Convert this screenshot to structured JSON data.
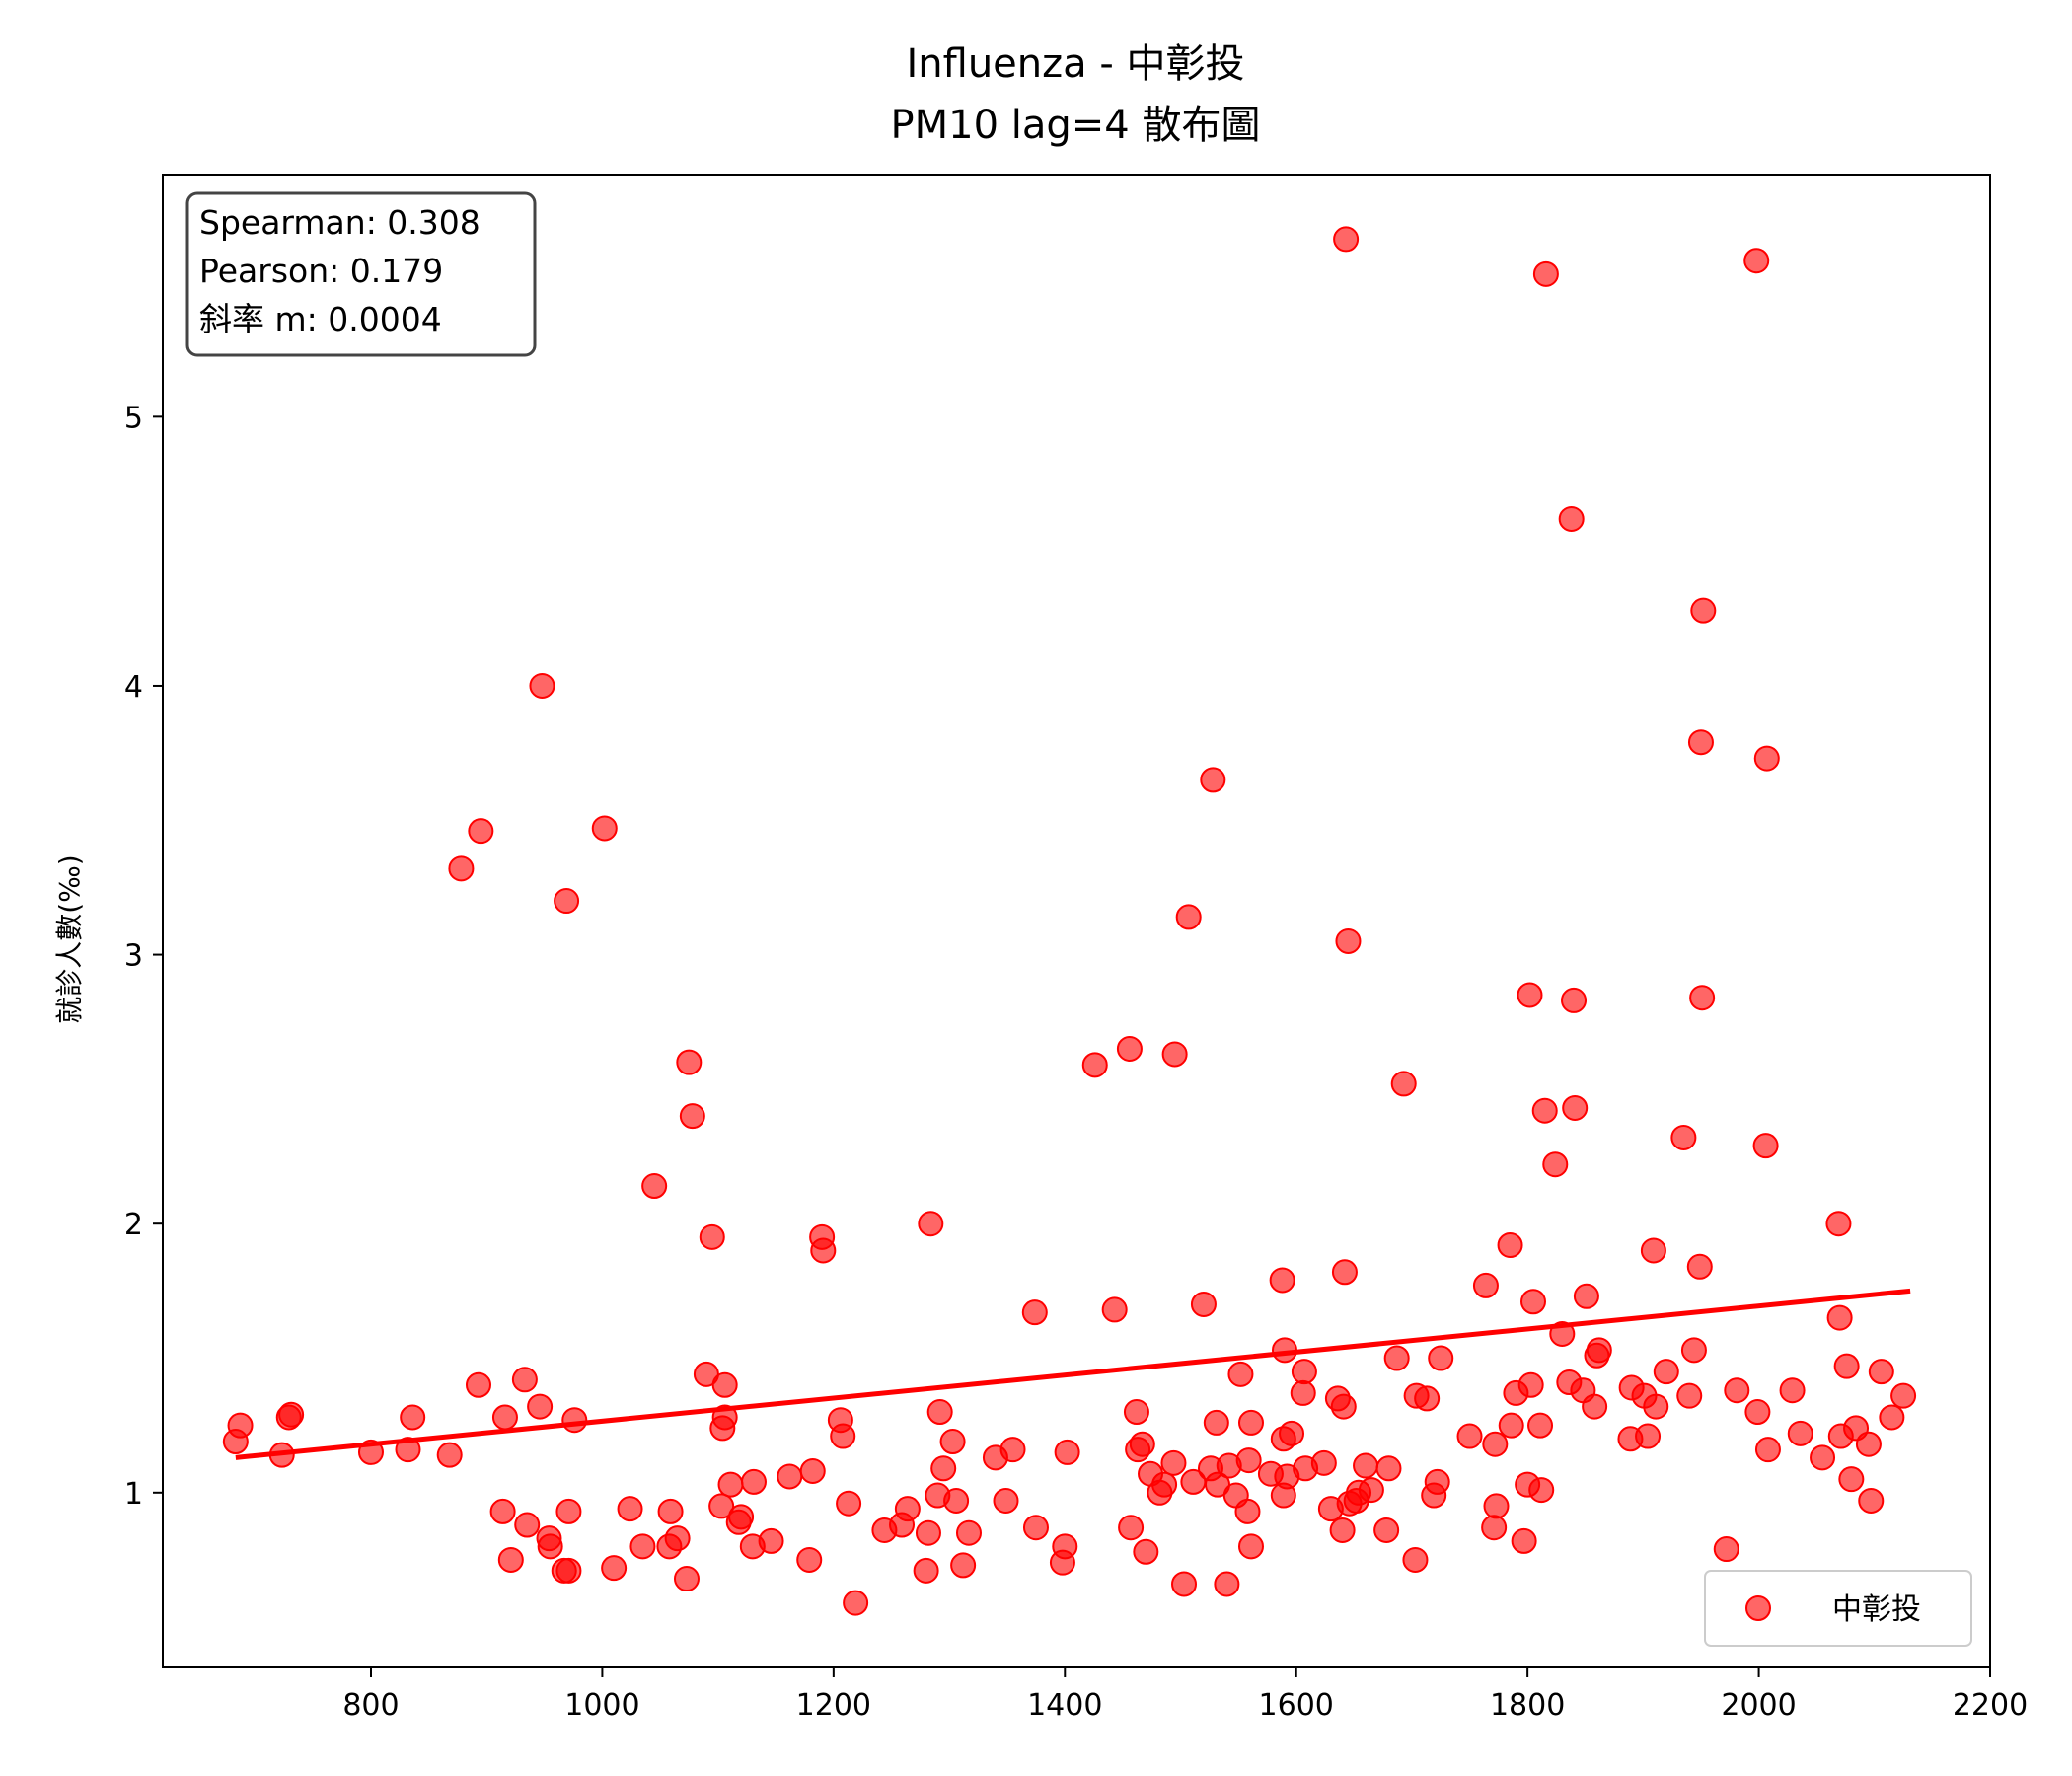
{
  "chart_data": {
    "type": "scatter",
    "title_line1": "Influenza - 中彰投",
    "title_line2": "PM10 lag=4 散布圖",
    "xlabel": "",
    "ylabel": "就診人數(‰)",
    "xlim": [
      620,
      2200
    ],
    "ylim": [
      0.35,
      5.9
    ],
    "xticks": [
      800,
      1000,
      1200,
      1400,
      1600,
      1800,
      2000,
      2200
    ],
    "yticks": [
      1,
      2,
      3,
      4,
      5
    ],
    "stats": {
      "spearman": "Spearman: 0.308",
      "pearson": "Pearson: 0.179",
      "slope": "斜率 m: 0.0004"
    },
    "legend": {
      "label": "中彰投",
      "placement": "lower-right"
    },
    "colors": {
      "point": "#ff0000",
      "line": "#ff0000"
    },
    "trendline": {
      "x": [
        683,
        2131
      ],
      "y": [
        1.13,
        1.75
      ]
    },
    "series": [
      {
        "name": "中彰投",
        "points": [
          [
            683,
            1.19
          ],
          [
            687,
            1.25
          ],
          [
            723,
            1.14
          ],
          [
            729,
            1.28
          ],
          [
            731,
            1.29
          ],
          [
            800,
            1.15
          ],
          [
            832,
            1.16
          ],
          [
            836,
            1.28
          ],
          [
            868,
            1.14
          ],
          [
            878,
            3.32
          ],
          [
            893,
            1.4
          ],
          [
            895,
            3.46
          ],
          [
            914,
            0.93
          ],
          [
            916,
            1.28
          ],
          [
            921,
            0.75
          ],
          [
            933,
            1.42
          ],
          [
            935,
            0.88
          ],
          [
            946,
            1.32
          ],
          [
            948,
            4.0
          ],
          [
            954,
            0.83
          ],
          [
            955,
            0.8
          ],
          [
            967,
            0.71
          ],
          [
            969,
            3.2
          ],
          [
            971,
            0.71
          ],
          [
            971,
            0.93
          ],
          [
            976,
            1.27
          ],
          [
            1002,
            3.47
          ],
          [
            1010,
            0.72
          ],
          [
            1024,
            0.94
          ],
          [
            1035,
            0.8
          ],
          [
            1045,
            2.14
          ],
          [
            1058,
            0.8
          ],
          [
            1059,
            0.93
          ],
          [
            1065,
            0.83
          ],
          [
            1073,
            0.68
          ],
          [
            1075,
            2.6
          ],
          [
            1078,
            2.4
          ],
          [
            1090,
            1.44
          ],
          [
            1095,
            1.95
          ],
          [
            1103,
            0.95
          ],
          [
            1104,
            1.24
          ],
          [
            1106,
            1.28
          ],
          [
            1106,
            1.4
          ],
          [
            1111,
            1.03
          ],
          [
            1118,
            0.89
          ],
          [
            1120,
            0.91
          ],
          [
            1130,
            0.8
          ],
          [
            1131,
            1.04
          ],
          [
            1146,
            0.82
          ],
          [
            1162,
            1.06
          ],
          [
            1179,
            0.75
          ],
          [
            1182,
            1.08
          ],
          [
            1190,
            1.95
          ],
          [
            1191,
            1.9
          ],
          [
            1206,
            1.27
          ],
          [
            1208,
            1.21
          ],
          [
            1213,
            0.96
          ],
          [
            1219,
            0.59
          ],
          [
            1244,
            0.86
          ],
          [
            1259,
            0.88
          ],
          [
            1264,
            0.94
          ],
          [
            1280,
            0.71
          ],
          [
            1282,
            0.85
          ],
          [
            1284,
            2.0
          ],
          [
            1290,
            0.99
          ],
          [
            1292,
            1.3
          ],
          [
            1295,
            1.09
          ],
          [
            1303,
            1.19
          ],
          [
            1306,
            0.97
          ],
          [
            1312,
            0.73
          ],
          [
            1317,
            0.85
          ],
          [
            1340,
            1.13
          ],
          [
            1349,
            0.97
          ],
          [
            1355,
            1.16
          ],
          [
            1374,
            1.67
          ],
          [
            1375,
            0.87
          ],
          [
            1398,
            0.74
          ],
          [
            1400,
            0.8
          ],
          [
            1402,
            1.15
          ],
          [
            1426,
            2.59
          ],
          [
            1443,
            1.68
          ],
          [
            1456,
            2.65
          ],
          [
            1457,
            0.87
          ],
          [
            1462,
            1.3
          ],
          [
            1463,
            1.16
          ],
          [
            1467,
            1.18
          ],
          [
            1470,
            0.78
          ],
          [
            1474,
            1.07
          ],
          [
            1482,
            1.0
          ],
          [
            1486,
            1.03
          ],
          [
            1494,
            1.11
          ],
          [
            1495,
            2.63
          ],
          [
            1503,
            0.66
          ],
          [
            1507,
            3.14
          ],
          [
            1511,
            1.04
          ],
          [
            1520,
            1.7
          ],
          [
            1526,
            1.09
          ],
          [
            1528,
            3.65
          ],
          [
            1531,
            1.26
          ],
          [
            1532,
            1.03
          ],
          [
            1540,
            0.66
          ],
          [
            1542,
            1.1
          ],
          [
            1548,
            0.99
          ],
          [
            1552,
            1.44
          ],
          [
            1558,
            0.93
          ],
          [
            1559,
            1.12
          ],
          [
            1561,
            0.8
          ],
          [
            1561,
            1.26
          ],
          [
            1578,
            1.07
          ],
          [
            1588,
            1.79
          ],
          [
            1589,
            0.99
          ],
          [
            1589,
            1.2
          ],
          [
            1590,
            1.53
          ],
          [
            1592,
            1.06
          ],
          [
            1596,
            1.22
          ],
          [
            1606,
            1.37
          ],
          [
            1607,
            1.45
          ],
          [
            1608,
            1.09
          ],
          [
            1624,
            1.11
          ],
          [
            1630,
            0.94
          ],
          [
            1636,
            1.35
          ],
          [
            1640,
            0.86
          ],
          [
            1641,
            1.32
          ],
          [
            1642,
            1.82
          ],
          [
            1643,
            5.66
          ],
          [
            1645,
            3.05
          ],
          [
            1646,
            0.96
          ],
          [
            1652,
            0.97
          ],
          [
            1654,
            1.0
          ],
          [
            1660,
            1.1
          ],
          [
            1665,
            1.01
          ],
          [
            1678,
            0.86
          ],
          [
            1680,
            1.09
          ],
          [
            1687,
            1.5
          ],
          [
            1693,
            2.52
          ],
          [
            1703,
            0.75
          ],
          [
            1704,
            1.36
          ],
          [
            1713,
            1.35
          ],
          [
            1719,
            0.99
          ],
          [
            1722,
            1.04
          ],
          [
            1725,
            1.5
          ],
          [
            1750,
            1.21
          ],
          [
            1764,
            1.77
          ],
          [
            1771,
            0.87
          ],
          [
            1772,
            1.18
          ],
          [
            1773,
            0.95
          ],
          [
            1785,
            1.92
          ],
          [
            1786,
            1.25
          ],
          [
            1790,
            1.37
          ],
          [
            1797,
            0.82
          ],
          [
            1800,
            1.03
          ],
          [
            1802,
            2.85
          ],
          [
            1803,
            1.4
          ],
          [
            1805,
            1.71
          ],
          [
            1811,
            1.25
          ],
          [
            1812,
            1.01
          ],
          [
            1815,
            2.42
          ],
          [
            1816,
            5.53
          ],
          [
            1824,
            2.22
          ],
          [
            1830,
            1.59
          ],
          [
            1836,
            1.41
          ],
          [
            1838,
            4.62
          ],
          [
            1840,
            2.83
          ],
          [
            1841,
            2.43
          ],
          [
            1848,
            1.38
          ],
          [
            1851,
            1.73
          ],
          [
            1858,
            1.32
          ],
          [
            1860,
            1.51
          ],
          [
            1862,
            1.53
          ],
          [
            1889,
            1.2
          ],
          [
            1890,
            1.39
          ],
          [
            1901,
            1.36
          ],
          [
            1904,
            1.21
          ],
          [
            1909,
            1.9
          ],
          [
            1911,
            1.32
          ],
          [
            1920,
            1.45
          ],
          [
            1935,
            2.32
          ],
          [
            1940,
            1.36
          ],
          [
            1944,
            1.53
          ],
          [
            1949,
            1.84
          ],
          [
            1950,
            3.79
          ],
          [
            1951,
            2.84
          ],
          [
            1952,
            4.28
          ],
          [
            1972,
            0.79
          ],
          [
            1981,
            1.38
          ],
          [
            1998,
            5.58
          ],
          [
            1999,
            1.3
          ],
          [
            2006,
            2.29
          ],
          [
            2007,
            3.73
          ],
          [
            2008,
            1.16
          ],
          [
            2029,
            1.38
          ],
          [
            2036,
            1.22
          ],
          [
            2055,
            1.13
          ],
          [
            2069,
            2.0
          ],
          [
            2070,
            1.65
          ],
          [
            2071,
            1.21
          ],
          [
            2076,
            1.47
          ],
          [
            2080,
            1.05
          ],
          [
            2084,
            1.24
          ],
          [
            2095,
            1.18
          ],
          [
            2097,
            0.97
          ],
          [
            2106,
            1.45
          ],
          [
            2115,
            1.28
          ],
          [
            2125,
            1.36
          ]
        ]
      }
    ]
  }
}
